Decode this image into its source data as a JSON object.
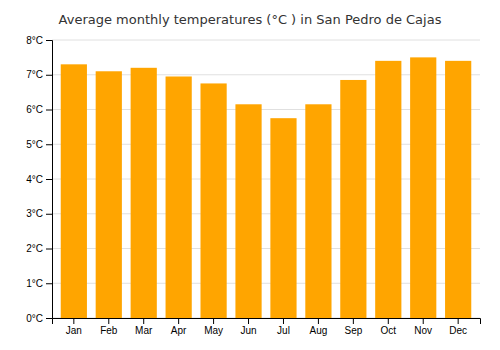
{
  "chart_data": {
    "type": "bar",
    "title": "Average monthly temperatures (°C ) in San Pedro de Cajas",
    "categories": [
      "Jan",
      "Feb",
      "Mar",
      "Apr",
      "May",
      "Jun",
      "Jul",
      "Aug",
      "Sep",
      "Oct",
      "Nov",
      "Dec"
    ],
    "values": [
      7.3,
      7.1,
      7.2,
      6.95,
      6.75,
      6.15,
      5.75,
      6.15,
      6.85,
      7.4,
      7.5,
      7.4
    ],
    "color": "#FFA500",
    "ylim": [
      0,
      8
    ],
    "yticks": [
      {
        "value": 0,
        "label": "0°C"
      },
      {
        "value": 1,
        "label": "1°C"
      },
      {
        "value": 2,
        "label": "2°C"
      },
      {
        "value": 3,
        "label": "3°C"
      },
      {
        "value": 4,
        "label": "4°C"
      },
      {
        "value": 5,
        "label": "5°C"
      },
      {
        "value": 6,
        "label": "6°C"
      },
      {
        "value": 7,
        "label": "7°C"
      },
      {
        "value": 8,
        "label": "8°C"
      }
    ],
    "grid": true
  }
}
